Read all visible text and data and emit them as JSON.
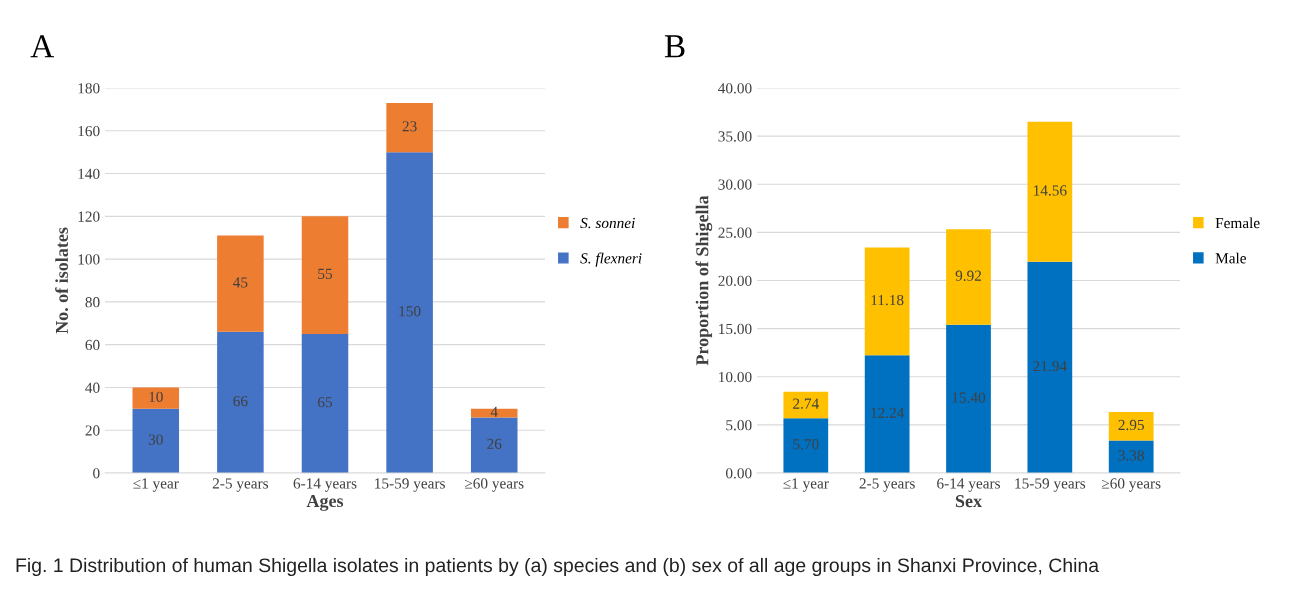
{
  "chart_data": [
    {
      "type": "bar",
      "title": "A",
      "xlabel": "Ages",
      "ylabel": "No. of isolates",
      "stacked": true,
      "categories": [
        "≤1 year",
        "2-5 years",
        "6-14 years",
        "15-59 years",
        "≥60 years"
      ],
      "series": [
        {
          "name": "S. flexneri",
          "color": "#4472c4",
          "values": [
            30,
            66,
            65,
            150,
            26
          ]
        },
        {
          "name": "S. sonnei",
          "color": "#ed7d31",
          "values": [
            10,
            45,
            55,
            23,
            4
          ]
        }
      ],
      "ylim": [
        0,
        180
      ],
      "yticks": [
        0,
        20,
        40,
        60,
        80,
        100,
        120,
        140,
        160,
        180
      ],
      "grid": "y",
      "legend": "right",
      "data_labels": true,
      "annotations": [
        "Fig. 1 Distribution of human Shigella isolates in patients by (a) species and (b) sex of all age groups in Shanxi Province, China"
      ]
    },
    {
      "type": "bar",
      "title": "B",
      "xlabel": "Sex",
      "ylabel": "Proportion of Shigella",
      "stacked": true,
      "categories": [
        "≤1 year",
        "2-5 years",
        "6-14 years",
        "15-59 years",
        "≥60 years"
      ],
      "series": [
        {
          "name": "Male",
          "color": "#0070c0",
          "values": [
            5.7,
            12.24,
            15.4,
            21.94,
            3.38
          ],
          "value_labels": [
            "5.70",
            "12.24",
            "15.40",
            "21.94",
            "3.38"
          ]
        },
        {
          "name": "Female",
          "color": "#ffc000",
          "values": [
            2.74,
            11.18,
            9.92,
            14.56,
            2.95
          ],
          "value_labels": [
            "2.74",
            "11.18",
            "9.92",
            "14.56",
            "2.95"
          ]
        }
      ],
      "ylim": [
        0,
        40
      ],
      "yticks": [
        {
          "value": 0,
          "label": "0.00"
        },
        {
          "value": 5,
          "label": "5.00"
        },
        {
          "value": 10,
          "label": "10.00"
        },
        {
          "value": 15,
          "label": "15.00"
        },
        {
          "value": 20,
          "label": "20.00"
        },
        {
          "value": 25,
          "label": "25.00"
        },
        {
          "value": 30,
          "label": "30.00"
        },
        {
          "value": 35,
          "label": "35.00"
        },
        {
          "value": 40,
          "label": "40.00"
        }
      ],
      "grid": "y",
      "legend": "right"
    }
  ]
}
